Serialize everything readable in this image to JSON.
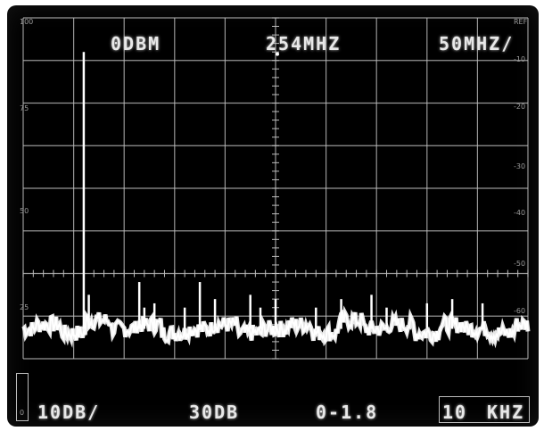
{
  "readouts": {
    "ref_level": "0DBM",
    "center_freq": "254MHZ",
    "span_per_div": "50MHZ/",
    "scale_per_div": "10DB/",
    "attenuation": "30DB",
    "sweep": "0-1.8",
    "bandwidth": "10",
    "bandwidth_unit": "KHZ"
  },
  "left_scale": {
    "top": "100",
    "l75": "75",
    "l50": "50",
    "l25": "25",
    "bottom": "0"
  },
  "right_scale": {
    "top": "REF",
    "r10": "-10",
    "r20": "-20",
    "r30": "-30",
    "r40": "-40",
    "r50": "-50",
    "r60": "-60"
  },
  "chart_data": {
    "type": "line",
    "x": [
      0,
      0.5,
      1,
      1.5,
      2,
      2.5,
      3,
      3.5,
      4,
      4.5,
      5,
      5.5,
      6,
      6.5,
      7,
      7.5,
      8,
      8.5,
      9,
      9.5,
      10
    ],
    "series": [
      {
        "values": [
          -73,
          -72,
          -74,
          -71,
          -73,
          -72,
          -74,
          -73,
          -72,
          -74,
          -73,
          -72,
          -74,
          -71,
          -73,
          -72,
          -74,
          -72,
          -73,
          -74,
          -72
        ]
      }
    ],
    "spikes": [
      {
        "x": 1.2,
        "y": -8
      },
      {
        "x": 1.3,
        "y": -65
      },
      {
        "x": 2.3,
        "y": -62
      },
      {
        "x": 2.4,
        "y": -68
      },
      {
        "x": 2.6,
        "y": -67
      },
      {
        "x": 3.2,
        "y": -68
      },
      {
        "x": 3.5,
        "y": -62
      },
      {
        "x": 3.8,
        "y": -66
      },
      {
        "x": 4.5,
        "y": -65
      },
      {
        "x": 4.7,
        "y": -68
      },
      {
        "x": 5.0,
        "y": -66
      },
      {
        "x": 5.8,
        "y": -68
      },
      {
        "x": 6.3,
        "y": -66
      },
      {
        "x": 6.9,
        "y": -65
      },
      {
        "x": 7.2,
        "y": -68
      },
      {
        "x": 8.0,
        "y": -67
      },
      {
        "x": 8.5,
        "y": -66
      },
      {
        "x": 9.1,
        "y": -67
      }
    ],
    "xlim": [
      0,
      10
    ],
    "ylim": [
      -80,
      0
    ],
    "grid": true
  },
  "colors": {
    "trace": "#ffffff",
    "grid": "#bdbdbd",
    "background": "#000000"
  }
}
